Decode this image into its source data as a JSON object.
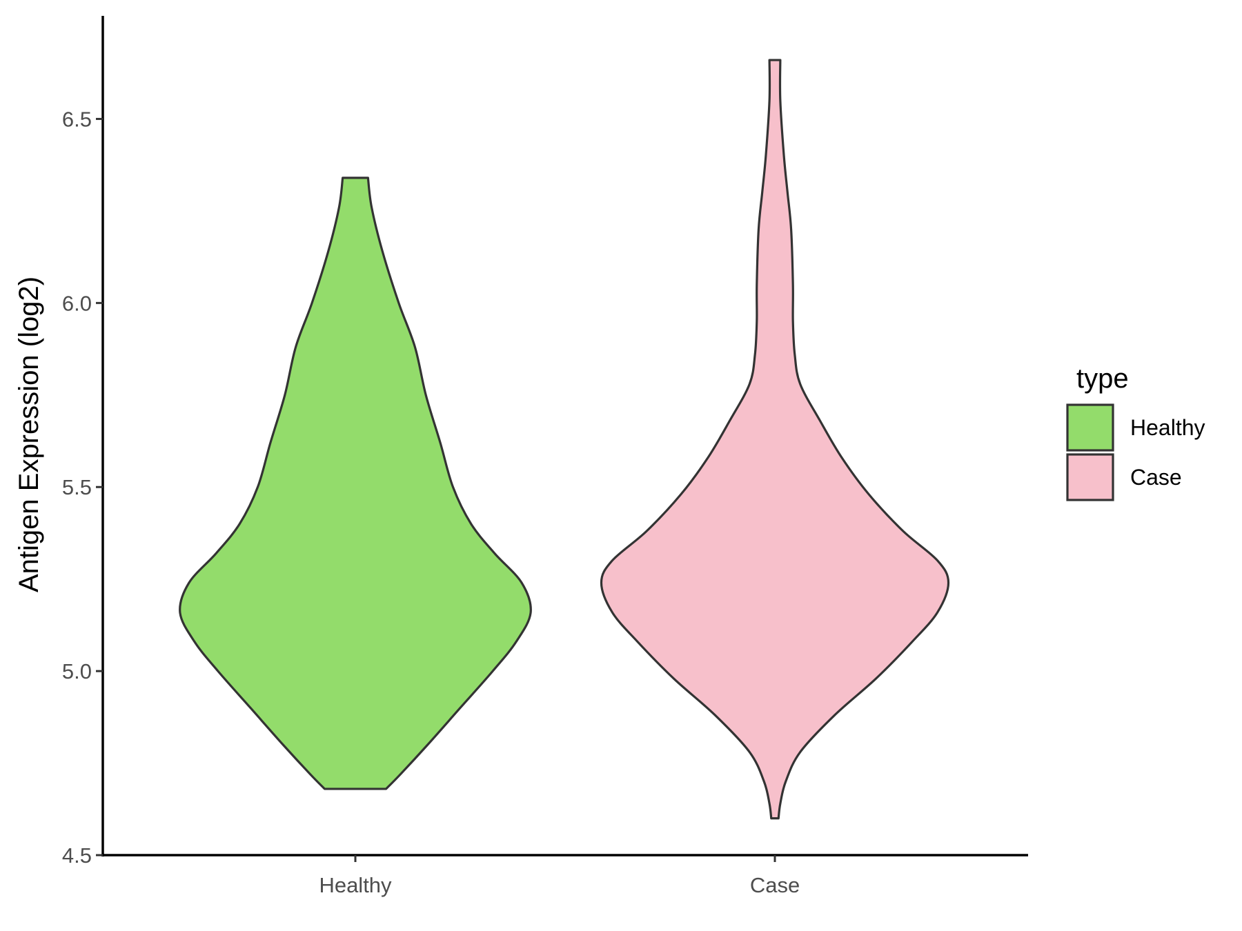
{
  "chart_data": {
    "type": "violin",
    "title": "",
    "xlabel": "",
    "ylabel": "Antigen Expression (log2)",
    "ylim": [
      4.5,
      6.78
    ],
    "yticks": [
      "4.5",
      "5.0",
      "5.5",
      "6.0",
      "6.5"
    ],
    "categories": [
      "Healthy",
      "Case"
    ],
    "grid": false,
    "legend": {
      "title": "type",
      "position": "right",
      "entries": [
        "Healthy",
        "Case"
      ]
    },
    "series": [
      {
        "name": "Healthy",
        "color": "#93DC6B",
        "min": 4.68,
        "max": 6.34,
        "peak": 5.16,
        "density": [
          [
            4.68,
            0.17
          ],
          [
            4.72,
            0.25
          ],
          [
            4.8,
            0.4
          ],
          [
            4.9,
            0.58
          ],
          [
            5.0,
            0.76
          ],
          [
            5.08,
            0.89
          ],
          [
            5.16,
            0.97
          ],
          [
            5.24,
            0.92
          ],
          [
            5.32,
            0.77
          ],
          [
            5.4,
            0.64
          ],
          [
            5.5,
            0.54
          ],
          [
            5.62,
            0.47
          ],
          [
            5.75,
            0.39
          ],
          [
            5.88,
            0.33
          ],
          [
            6.0,
            0.24
          ],
          [
            6.14,
            0.15
          ],
          [
            6.26,
            0.09
          ],
          [
            6.34,
            0.07
          ]
        ]
      },
      {
        "name": "Case",
        "color": "#F7C0CB",
        "min": 4.6,
        "max": 6.66,
        "peak": 5.24,
        "density": [
          [
            4.6,
            0.02
          ],
          [
            4.64,
            0.03
          ],
          [
            4.7,
            0.06
          ],
          [
            4.78,
            0.14
          ],
          [
            4.88,
            0.33
          ],
          [
            4.98,
            0.56
          ],
          [
            5.08,
            0.76
          ],
          [
            5.16,
            0.9
          ],
          [
            5.24,
            0.96
          ],
          [
            5.3,
            0.9
          ],
          [
            5.38,
            0.71
          ],
          [
            5.48,
            0.52
          ],
          [
            5.58,
            0.37
          ],
          [
            5.68,
            0.25
          ],
          [
            5.78,
            0.14
          ],
          [
            5.86,
            0.11
          ],
          [
            5.95,
            0.1
          ],
          [
            6.05,
            0.1
          ],
          [
            6.2,
            0.09
          ],
          [
            6.3,
            0.07
          ],
          [
            6.4,
            0.05
          ],
          [
            6.55,
            0.03
          ],
          [
            6.66,
            0.03
          ]
        ]
      }
    ]
  }
}
